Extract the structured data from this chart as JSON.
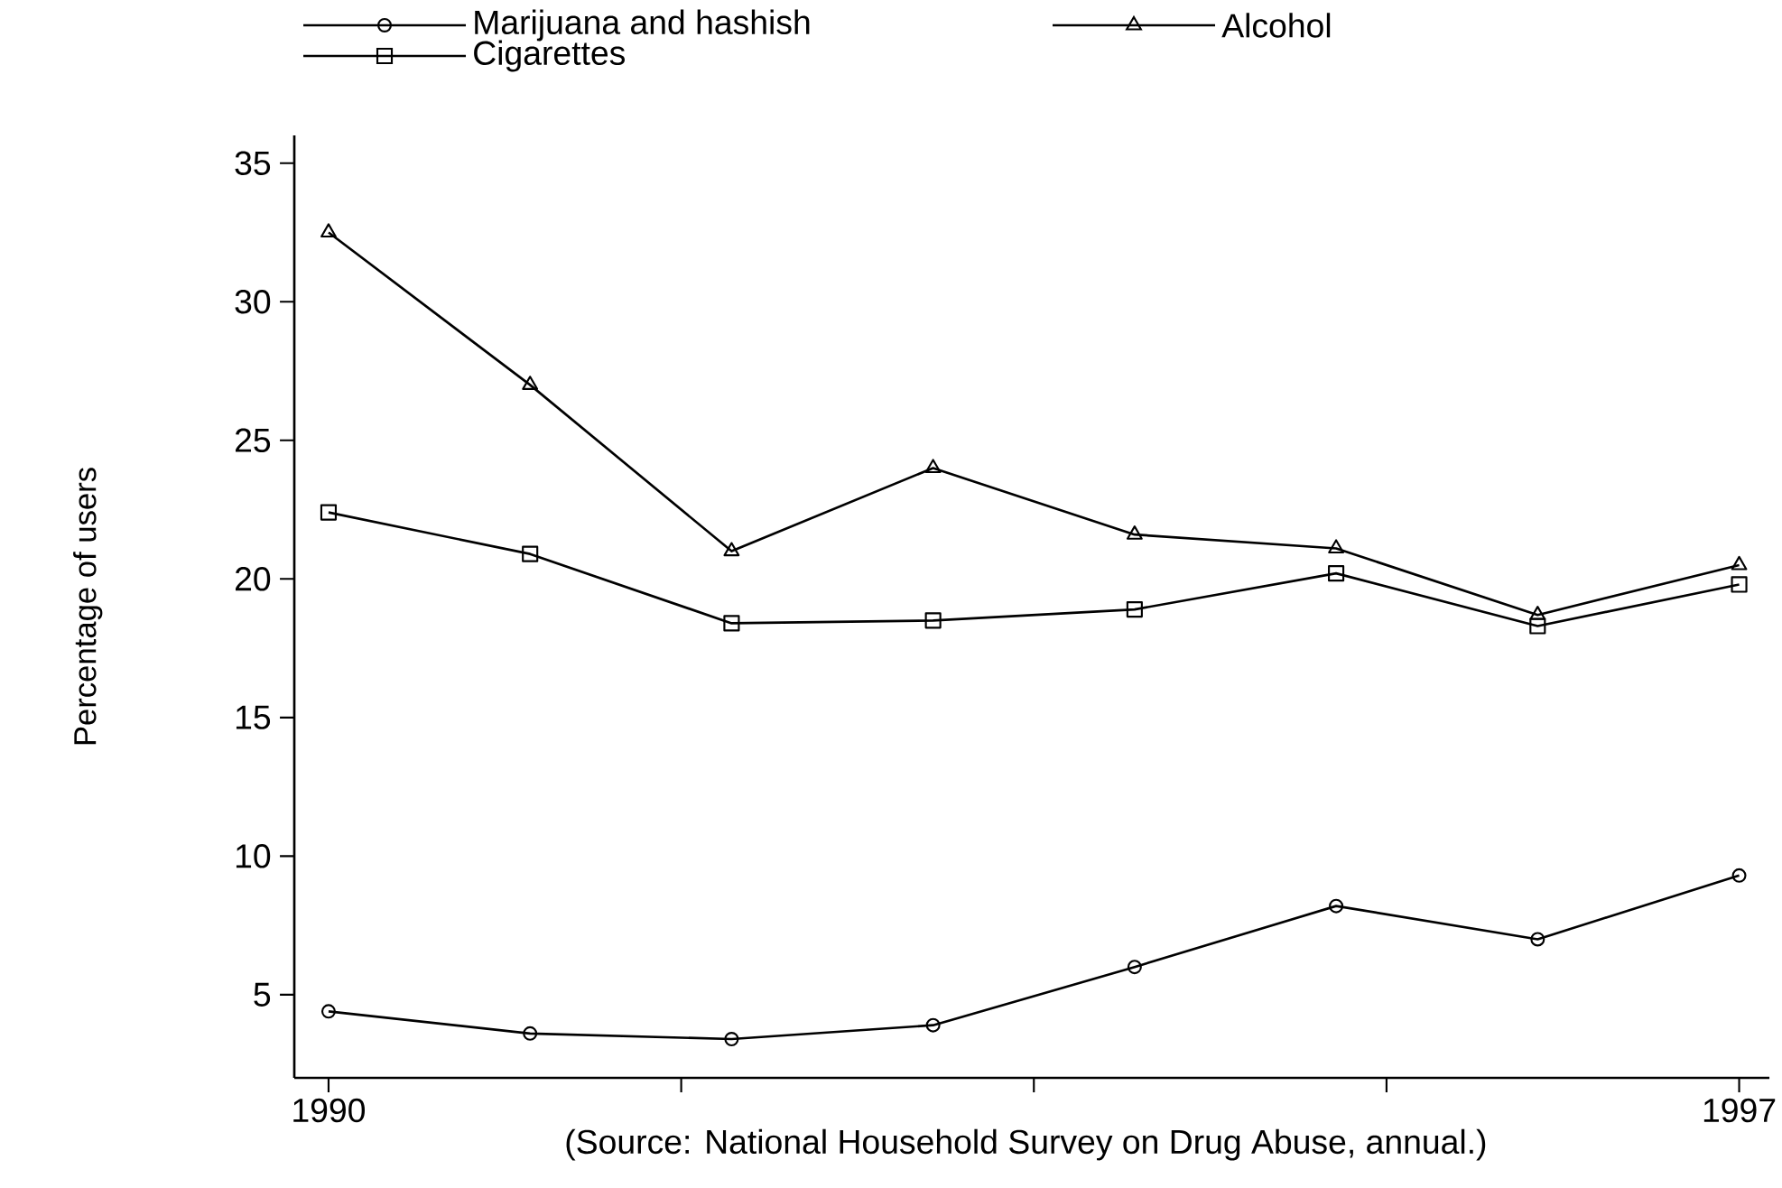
{
  "chart_data": {
    "type": "line",
    "ylabel": "Percentage of users",
    "annotations": [
      "(Source: National Household Survey on Drug Abuse, annual.)"
    ],
    "x": [
      1990,
      1991,
      1992,
      1993,
      1994,
      1995,
      1996,
      1997
    ],
    "series": [
      {
        "name": "Marijuana and hashish",
        "color": "#000000",
        "marker": "circle",
        "values": [
          4.4,
          3.6,
          3.4,
          3.9,
          6.0,
          8.2,
          7.0,
          9.3
        ]
      },
      {
        "name": "Alcohol",
        "color": "#000000",
        "marker": "triangle",
        "values": [
          32.5,
          27.0,
          21.0,
          24.0,
          21.6,
          21.1,
          18.7,
          20.5
        ]
      },
      {
        "name": "Cigarettes",
        "color": "#000000",
        "marker": "square",
        "values": [
          22.4,
          20.9,
          18.4,
          18.5,
          18.9,
          20.2,
          18.3,
          19.8
        ]
      }
    ],
    "xlim": [
      1989.83,
      1997.15
    ],
    "ylim": [
      2,
      36
    ],
    "xticks": [
      1990,
      {
        "value": 1991.75,
        "label": null
      },
      {
        "value": 1993.5,
        "label": null
      },
      {
        "value": 1995.25,
        "label": null
      },
      1997
    ],
    "yticks": [
      5,
      10,
      15,
      20,
      25,
      30,
      35
    ],
    "legend": "top",
    "grid": false,
    "line_style": "solid"
  }
}
